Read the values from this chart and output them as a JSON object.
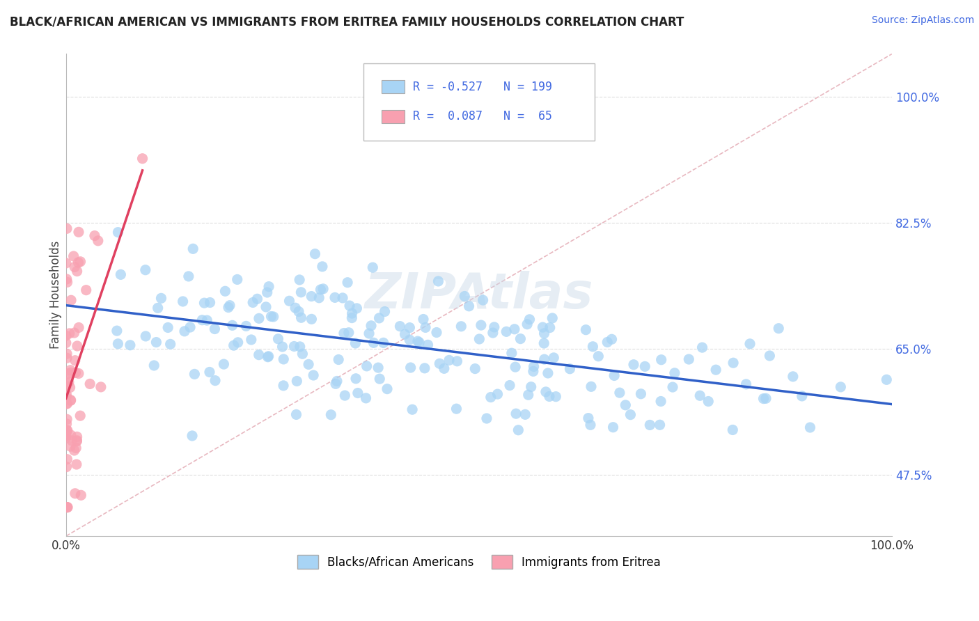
{
  "title": "BLACK/AFRICAN AMERICAN VS IMMIGRANTS FROM ERITREA FAMILY HOUSEHOLDS CORRELATION CHART",
  "source": "Source: ZipAtlas.com",
  "ylabel": "Family Households",
  "xlim": [
    0,
    1
  ],
  "ylim": [
    0.39,
    1.06
  ],
  "yticks": [
    0.475,
    0.65,
    0.825,
    1.0
  ],
  "ytick_labels": [
    "47.5%",
    "65.0%",
    "82.5%",
    "100.0%"
  ],
  "xticks": [
    0.0,
    1.0
  ],
  "xtick_labels": [
    "0.0%",
    "100.0%"
  ],
  "legend_labels": [
    "Blacks/African Americans",
    "Immigrants from Eritrea"
  ],
  "blue_color": "#A8D4F5",
  "pink_color": "#F8A0B0",
  "blue_line_color": "#3060C8",
  "pink_line_color": "#E04060",
  "diag_color": "#E8B8C0",
  "blue_R": -0.527,
  "blue_N": 199,
  "pink_R": 0.087,
  "pink_N": 65,
  "watermark": "ZIPAtlas",
  "background_color": "#FFFFFF",
  "grid_color": "#DDDDDD",
  "title_color": "#222222",
  "tick_color": "#4169E1",
  "seed_blue": 42,
  "seed_pink": 77
}
